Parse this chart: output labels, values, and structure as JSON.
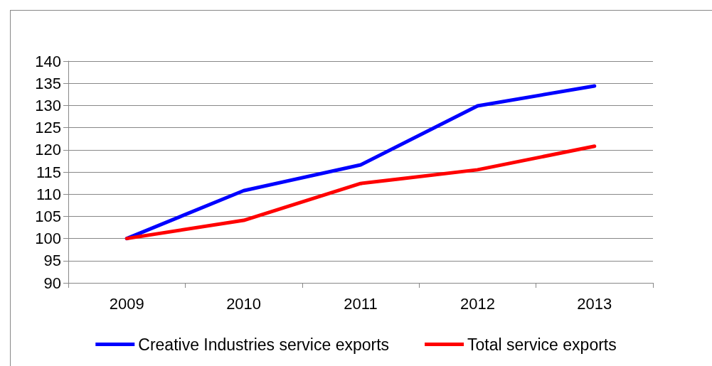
{
  "chart_data": {
    "type": "line",
    "categories": [
      "2009",
      "2010",
      "2011",
      "2012",
      "2013"
    ],
    "series": [
      {
        "name": "Creative Industries service exports",
        "color": "#0000ff",
        "values": [
          100,
          110.8,
          116.6,
          129.9,
          134.4
        ]
      },
      {
        "name": "Total service exports",
        "color": "#ff0000",
        "values": [
          100,
          104.1,
          112.4,
          115.5,
          120.8
        ]
      }
    ],
    "ylim": [
      90,
      140
    ],
    "yticks": [
      90,
      95,
      100,
      105,
      110,
      115,
      120,
      125,
      130,
      135,
      140
    ],
    "grid": "y",
    "legend": "bottom",
    "marker": "none",
    "line_style": "solid"
  }
}
